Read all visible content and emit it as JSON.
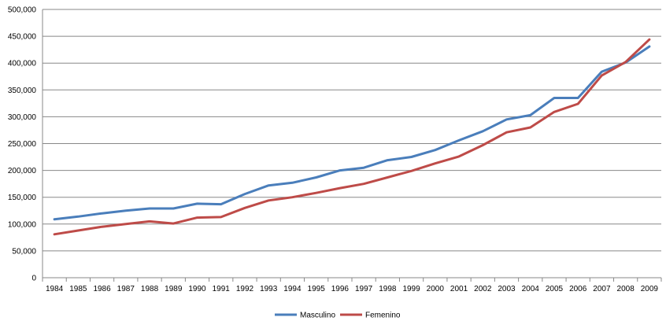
{
  "chart_data": {
    "type": "line",
    "x": [
      "1984",
      "1985",
      "1986",
      "1987",
      "1988",
      "1989",
      "1990",
      "1991",
      "1992",
      "1993",
      "1994",
      "1995",
      "1996",
      "1997",
      "1998",
      "1999",
      "2000",
      "2001",
      "2002",
      "2003",
      "2004",
      "2005",
      "2006",
      "2007",
      "2008",
      "2009"
    ],
    "y_ticks": [
      "0",
      "50,000",
      "100,000",
      "150,000",
      "200,000",
      "250,000",
      "300,000",
      "350,000",
      "400,000",
      "450,000",
      "500,000"
    ],
    "ylim": [
      0,
      500000
    ],
    "grid": "horizontal",
    "legend_position": "bottom",
    "series": [
      {
        "name": "Masculino",
        "color": "#4a7ebb",
        "values": [
          109000,
          114000,
          120000,
          125000,
          129000,
          129000,
          138000,
          137000,
          156000,
          172000,
          177000,
          187000,
          200000,
          205000,
          219000,
          225000,
          238000,
          256000,
          273000,
          295000,
          303000,
          335000,
          335000,
          384000,
          401000,
          431000
        ]
      },
      {
        "name": "Femenino",
        "color": "#be4b48",
        "values": [
          81000,
          88000,
          95000,
          100000,
          105000,
          101000,
          112000,
          113000,
          130000,
          144000,
          150000,
          158000,
          167000,
          175000,
          187000,
          199000,
          213000,
          226000,
          247000,
          271000,
          280000,
          309000,
          324000,
          377000,
          402000,
          444000
        ]
      }
    ]
  }
}
